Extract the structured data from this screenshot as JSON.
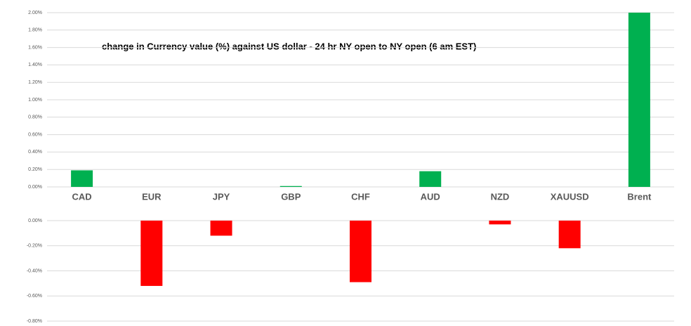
{
  "chart_data": [
    {
      "type": "bar",
      "title": "change in Currency value (%)  against US dollar - 24 hr NY open to NY open (6 am EST)",
      "categories": [
        "CAD",
        "EUR",
        "JPY",
        "GBP",
        "CHF",
        "AUD",
        "NZD",
        "XAUUSD",
        "Brent"
      ],
      "values": [
        0.19,
        0,
        0,
        0.01,
        0,
        0.18,
        0,
        0,
        2.0
      ],
      "color": "#00b050",
      "ylim": [
        0,
        2.0
      ],
      "yticks": [
        {
          "value": 0,
          "label": "0.00%"
        },
        {
          "value": 0.2,
          "label": "0.20%"
        },
        {
          "value": 0.4,
          "label": "0.40%"
        },
        {
          "value": 0.6,
          "label": "0.60%"
        },
        {
          "value": 0.8,
          "label": "0.80%"
        },
        {
          "value": 1.0,
          "label": "1.00%"
        },
        {
          "value": 1.2,
          "label": "1.20%"
        },
        {
          "value": 1.4,
          "label": "1.40%"
        },
        {
          "value": 1.6,
          "label": "1.60%"
        },
        {
          "value": 1.8,
          "label": "1.80%"
        },
        {
          "value": 2.0,
          "label": "2.00%"
        }
      ],
      "grid": true
    },
    {
      "type": "bar",
      "values": [
        0,
        -0.52,
        -0.12,
        0,
        -0.49,
        0,
        -0.03,
        -0.22,
        0
      ],
      "color": "#ff0000",
      "ylim": [
        -0.8,
        0
      ],
      "yticks": [
        {
          "value": 0,
          "label": "0.00%"
        },
        {
          "value": -0.2,
          "label": "-0.20%"
        },
        {
          "value": -0.4,
          "label": "-0.40%"
        },
        {
          "value": -0.6,
          "label": "-0.60%"
        },
        {
          "value": -0.8,
          "label": "-0.80%"
        }
      ],
      "grid": true
    }
  ]
}
